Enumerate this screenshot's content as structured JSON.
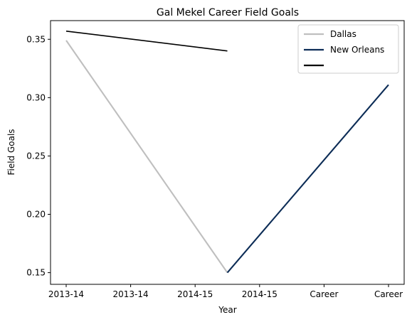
{
  "chart_data": {
    "type": "line",
    "title": "Gal Mekel Career Field Goals",
    "xlabel": "Year",
    "ylabel": "Field Goals",
    "categories": [
      "2013-14",
      "2013-14",
      "2014-15",
      "2014-15",
      "Career",
      "Career"
    ],
    "ylim": [
      0.14,
      0.366
    ],
    "yticks": [
      0.15,
      0.2,
      0.25,
      0.3,
      0.35
    ],
    "ytick_labels": [
      "0.15",
      "0.20",
      "0.25",
      "0.30",
      "0.35"
    ],
    "grid": false,
    "legend_position": "top-right",
    "series": [
      {
        "name": "Dallas",
        "color": "#bfbfbf",
        "points": [
          {
            "x": 0,
            "y": 0.349
          },
          {
            "x": 2.5,
            "y": 0.15
          }
        ]
      },
      {
        "name": "New Orleans",
        "color": "#0c2c56",
        "points": [
          {
            "x": 2.5,
            "y": 0.15
          },
          {
            "x": 5,
            "y": 0.311
          }
        ]
      },
      {
        "name": "",
        "color": "#000000",
        "points": [
          {
            "x": 0,
            "y": 0.357
          },
          {
            "x": 2.5,
            "y": 0.34
          }
        ]
      }
    ]
  }
}
